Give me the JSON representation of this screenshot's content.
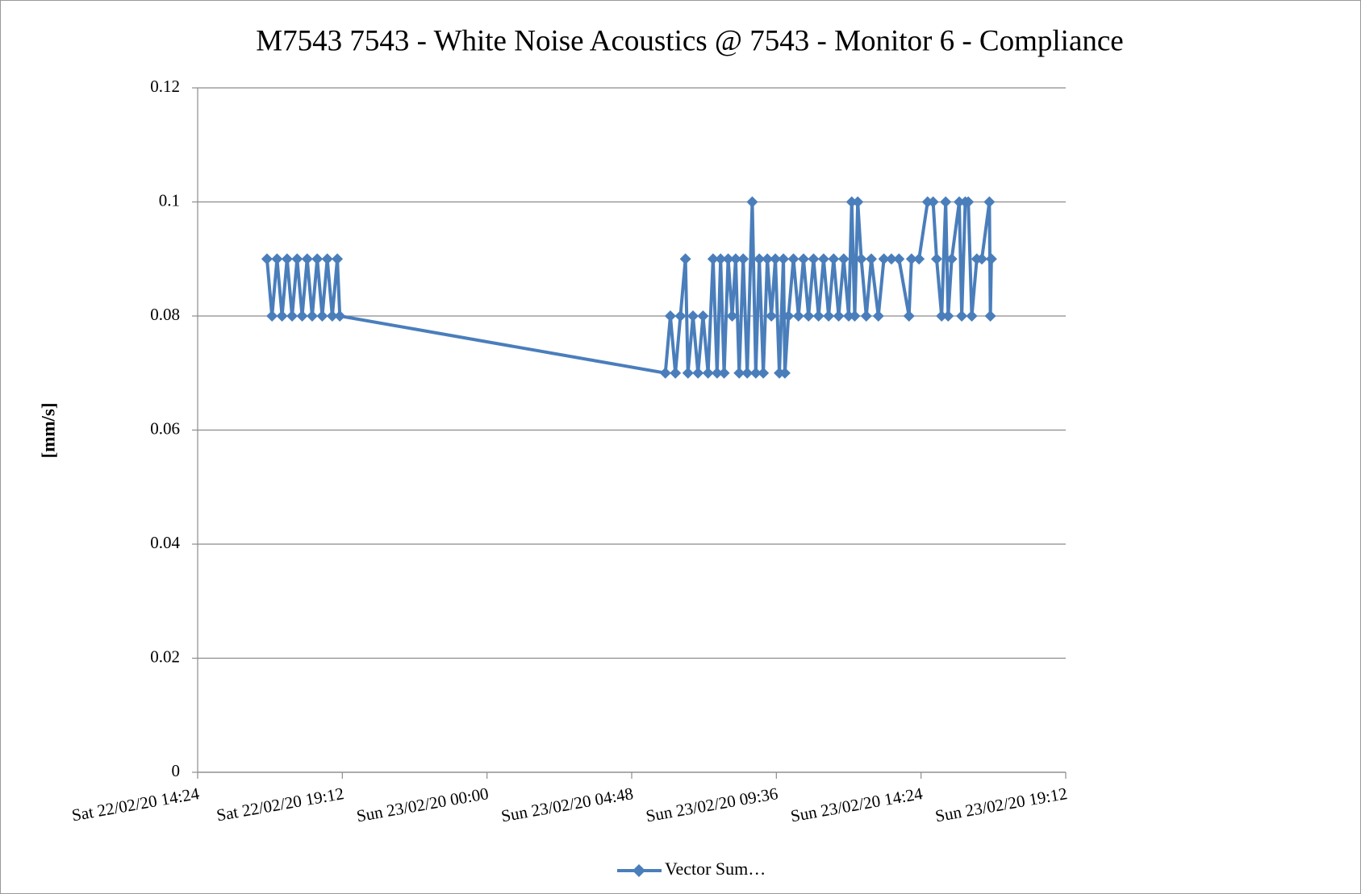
{
  "chart_data": {
    "type": "line",
    "title": "M7543 7543 - White Noise Acoustics @ 7543 - Monitor 6  - Compliance",
    "y_label": "[mm/s]",
    "ylim": [
      0,
      0.12
    ],
    "yticks": [
      0,
      0.02,
      0.04,
      0.06,
      0.08,
      0.1,
      0.12
    ],
    "xlim": [
      "2020-02-22T14:24",
      "2020-02-23T19:12"
    ],
    "xticks": [
      {
        "value": "2020-02-22T14:24",
        "label": "Sat 22/02/20 14:24"
      },
      {
        "value": "2020-02-22T19:12",
        "label": "Sat 22/02/20 19:12"
      },
      {
        "value": "2020-02-23T00:00",
        "label": "Sun 23/02/20 00:00"
      },
      {
        "value": "2020-02-23T04:48",
        "label": "Sun 23/02/20 04:48"
      },
      {
        "value": "2020-02-23T09:36",
        "label": "Sun 23/02/20 09:36"
      },
      {
        "value": "2020-02-23T14:24",
        "label": "Sun 23/02/20 14:24"
      },
      {
        "value": "2020-02-23T19:12",
        "label": "Sun 23/02/20 19:12"
      }
    ],
    "grid": true,
    "legend": "bottom",
    "x": [
      "2020-02-22T16:42",
      "2020-02-22T16:52",
      "2020-02-22T17:02",
      "2020-02-22T17:12",
      "2020-02-22T17:22",
      "2020-02-22T17:32",
      "2020-02-22T17:42",
      "2020-02-22T17:52",
      "2020-02-22T18:02",
      "2020-02-22T18:12",
      "2020-02-22T18:22",
      "2020-02-22T18:32",
      "2020-02-22T18:42",
      "2020-02-22T18:52",
      "2020-02-22T19:02",
      "2020-02-22T19:07",
      "2020-02-23T05:55",
      "2020-02-23T06:05",
      "2020-02-23T06:15",
      "2020-02-23T06:25",
      "2020-02-23T06:35",
      "2020-02-23T06:40",
      "2020-02-23T06:50",
      "2020-02-23T07:00",
      "2020-02-23T07:10",
      "2020-02-23T07:20",
      "2020-02-23T07:30",
      "2020-02-23T07:38",
      "2020-02-23T07:45",
      "2020-02-23T07:52",
      "2020-02-23T08:00",
      "2020-02-23T08:08",
      "2020-02-23T08:15",
      "2020-02-23T08:22",
      "2020-02-23T08:30",
      "2020-02-23T08:38",
      "2020-02-23T08:48",
      "2020-02-23T08:55",
      "2020-02-23T09:02",
      "2020-02-23T09:10",
      "2020-02-23T09:18",
      "2020-02-23T09:26",
      "2020-02-23T09:34",
      "2020-02-23T09:42",
      "2020-02-23T09:50",
      "2020-02-23T09:53",
      "2020-02-23T10:00",
      "2020-02-23T10:10",
      "2020-02-23T10:20",
      "2020-02-23T10:30",
      "2020-02-23T10:40",
      "2020-02-23T10:50",
      "2020-02-23T11:00",
      "2020-02-23T11:10",
      "2020-02-23T11:20",
      "2020-02-23T11:30",
      "2020-02-23T11:40",
      "2020-02-23T11:50",
      "2020-02-23T12:00",
      "2020-02-23T12:06",
      "2020-02-23T12:12",
      "2020-02-23T12:18",
      "2020-02-23T12:25",
      "2020-02-23T12:35",
      "2020-02-23T12:45",
      "2020-02-23T12:59",
      "2020-02-23T13:10",
      "2020-02-23T13:25",
      "2020-02-23T13:40",
      "2020-02-23T14:00",
      "2020-02-23T14:05",
      "2020-02-23T14:20",
      "2020-02-23T14:37",
      "2020-02-23T14:48",
      "2020-02-23T14:55",
      "2020-02-23T15:05",
      "2020-02-23T15:13",
      "2020-02-23T15:18",
      "2020-02-23T15:25",
      "2020-02-23T15:40",
      "2020-02-23T15:45",
      "2020-02-23T15:52",
      "2020-02-23T15:58",
      "2020-02-23T16:05",
      "2020-02-23T16:15",
      "2020-02-23T16:25",
      "2020-02-23T16:40",
      "2020-02-23T16:42",
      "2020-02-23T16:44"
    ],
    "series": [
      {
        "name": "Vector Sum…",
        "color": "#4a7ebb",
        "values": [
          0.09,
          0.08,
          0.09,
          0.08,
          0.09,
          0.08,
          0.09,
          0.08,
          0.09,
          0.08,
          0.09,
          0.08,
          0.09,
          0.08,
          0.09,
          0.08,
          0.07,
          0.08,
          0.07,
          0.08,
          0.09,
          0.07,
          0.08,
          0.07,
          0.08,
          0.07,
          0.09,
          0.07,
          0.09,
          0.07,
          0.09,
          0.08,
          0.09,
          0.07,
          0.09,
          0.07,
          0.1,
          0.07,
          0.09,
          0.07,
          0.09,
          0.08,
          0.09,
          0.07,
          0.09,
          0.07,
          0.08,
          0.09,
          0.08,
          0.09,
          0.08,
          0.09,
          0.08,
          0.09,
          0.08,
          0.09,
          0.08,
          0.09,
          0.08,
          0.1,
          0.08,
          0.1,
          0.09,
          0.08,
          0.09,
          0.08,
          0.09,
          0.09,
          0.09,
          0.08,
          0.09,
          0.09,
          0.1,
          0.1,
          0.09,
          0.08,
          0.1,
          0.08,
          0.09,
          0.1,
          0.08,
          0.1,
          0.1,
          0.08,
          0.09,
          0.09,
          0.1,
          0.08,
          0.09
        ]
      }
    ]
  }
}
